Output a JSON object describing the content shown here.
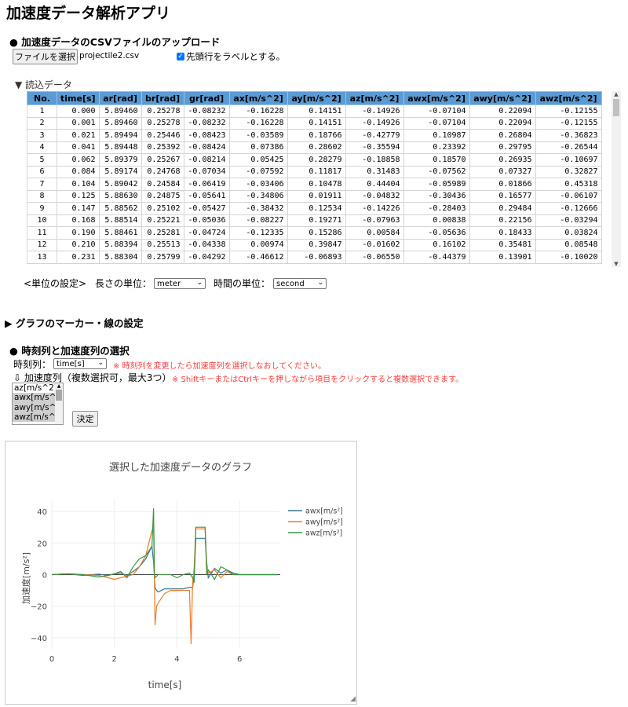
{
  "app": {
    "title": "加速度データ解析アプリ"
  },
  "upload": {
    "heading": "● 加速度データのCSVファイルのアップロード",
    "file_button": "ファイルを選択",
    "file_name": "projectile2.csv",
    "header_checkbox_label": "先頭行をラベルとする。",
    "header_checked": true
  },
  "readdata": {
    "summary": "▼ 読込データ",
    "columns": [
      "No.",
      "time[s]",
      "ar[rad]",
      "br[rad]",
      "gr[rad]",
      "ax[m/s^2]",
      "ay[m/s^2]",
      "az[m/s^2]",
      "awx[m/s^2]",
      "awy[m/s^2]",
      "awz[m/s^2]"
    ],
    "rows": [
      [
        "1",
        "0.000",
        "5.89460",
        "0.25278",
        "-0.08232",
        "-0.16228",
        "0.14151",
        "-0.14926",
        "-0.07104",
        "0.22094",
        "-0.12155"
      ],
      [
        "2",
        "0.001",
        "5.89460",
        "0.25278",
        "-0.08232",
        "-0.16228",
        "0.14151",
        "-0.14926",
        "-0.07104",
        "0.22094",
        "-0.12155"
      ],
      [
        "3",
        "0.021",
        "5.89494",
        "0.25446",
        "-0.08423",
        "-0.03589",
        "0.18766",
        "-0.42779",
        "0.10987",
        "0.26804",
        "-0.36823"
      ],
      [
        "4",
        "0.041",
        "5.89448",
        "0.25392",
        "-0.08424",
        "0.07386",
        "0.28602",
        "-0.35594",
        "0.23392",
        "0.29795",
        "-0.26544"
      ],
      [
        "5",
        "0.062",
        "5.89379",
        "0.25267",
        "-0.08214",
        "0.05425",
        "0.28279",
        "-0.18858",
        "0.18570",
        "0.26935",
        "-0.10697"
      ],
      [
        "6",
        "0.084",
        "5.89174",
        "0.24768",
        "-0.07034",
        "-0.07592",
        "0.11817",
        "0.31483",
        "-0.07562",
        "0.07327",
        "0.32827"
      ],
      [
        "7",
        "0.104",
        "5.89042",
        "0.24584",
        "-0.06419",
        "-0.03406",
        "0.10478",
        "0.44404",
        "-0.05989",
        "0.01866",
        "0.45318"
      ],
      [
        "8",
        "0.125",
        "5.88630",
        "0.24875",
        "-0.05641",
        "-0.34806",
        "0.01911",
        "-0.04832",
        "-0.30436",
        "0.16577",
        "-0.06107"
      ],
      [
        "9",
        "0.147",
        "5.88562",
        "0.25102",
        "-0.05427",
        "-0.38432",
        "0.12534",
        "-0.14226",
        "-0.28403",
        "0.29484",
        "-0.12666"
      ],
      [
        "10",
        "0.168",
        "5.88514",
        "0.25221",
        "-0.05036",
        "-0.08227",
        "0.19271",
        "-0.07963",
        "0.00838",
        "0.22156",
        "-0.03294"
      ],
      [
        "11",
        "0.190",
        "5.88461",
        "0.25281",
        "-0.04724",
        "-0.12335",
        "0.15286",
        "0.00584",
        "-0.05636",
        "0.18433",
        "0.03824"
      ],
      [
        "12",
        "0.210",
        "5.88394",
        "0.25513",
        "-0.04338",
        "0.00974",
        "0.39847",
        "-0.01602",
        "0.16102",
        "0.35481",
        "0.08548"
      ],
      [
        "13",
        "0.231",
        "5.88304",
        "0.25799",
        "-0.04292",
        "-0.46612",
        "-0.06893",
        "-0.06550",
        "-0.44379",
        "0.13901",
        "-0.10020"
      ]
    ]
  },
  "units": {
    "label": "<単位の設定>",
    "length_label": "長さの単位：",
    "length_value": "meter",
    "time_label": "時間の単位：",
    "time_value": "second"
  },
  "marker": {
    "summary": "▶ グラフのマーカー・線の設定"
  },
  "selection": {
    "heading": "● 時刻列と加速度列の選択",
    "time_label": "時刻列：",
    "time_value": "time[s]",
    "time_note": "※ 時刻列を変更したら加速度列を選択しなおしてください。",
    "accel_label": "⇩ 加速度列（複数選択可，最大3つ）",
    "accel_note": "※ ShiftキーまたはCtrlキーを押しながら項目をクリックすると複数選択できます。",
    "options": [
      "az[m/s^2]",
      "awx[m/s^2]",
      "awy[m/s^2]",
      "awz[m/s^2]"
    ],
    "selected": [
      false,
      true,
      true,
      true
    ],
    "decide_button": "決定"
  },
  "chart_data": {
    "type": "line",
    "title": "選択した加速度データのグラフ",
    "xlabel": "time[s]",
    "ylabel": "加速度[m/s²]",
    "xlim": [
      0,
      7.3
    ],
    "ylim": [
      -47,
      47
    ],
    "xticks": [
      "0",
      "2",
      "4",
      "6"
    ],
    "yticks": [
      "40",
      "20",
      "0",
      "−20",
      "−40"
    ],
    "legend_position": "top-right",
    "series": [
      {
        "name": "awx[m/s²]",
        "color": "#3a7590",
        "x": [
          0,
          0.5,
          1,
          1.5,
          1.8,
          2.0,
          2.2,
          2.4,
          2.6,
          2.8,
          3.0,
          3.1,
          3.2,
          3.25,
          3.3,
          3.35,
          3.4,
          3.6,
          3.8,
          4.0,
          4.2,
          4.4,
          4.5,
          4.55,
          4.6,
          4.8,
          4.9,
          4.95,
          5.0,
          5.2,
          5.4,
          5.6,
          5.8,
          6.0,
          6.5,
          7.0,
          7.2
        ],
        "y": [
          0,
          0.5,
          -0.5,
          0.3,
          -0.5,
          0.5,
          1.0,
          -0.5,
          2,
          5,
          10,
          14,
          18,
          8,
          -8,
          -10,
          -11,
          -9,
          -9,
          -9,
          -9,
          -8,
          -8,
          0,
          23,
          23,
          23,
          8,
          -2,
          4,
          1,
          3,
          1,
          0,
          0,
          0,
          0
        ]
      },
      {
        "name": "awy[m/s²]",
        "color": "#f07d28",
        "x": [
          0,
          0.5,
          1,
          1.5,
          1.8,
          2.0,
          2.2,
          2.4,
          2.6,
          2.8,
          3.0,
          3.1,
          3.2,
          3.25,
          3.28,
          3.3,
          3.35,
          3.4,
          3.5,
          3.6,
          3.8,
          4.0,
          4.2,
          4.4,
          4.45,
          4.5,
          4.55,
          4.6,
          4.8,
          4.9,
          4.95,
          5.0,
          5.2,
          5.4,
          5.6,
          5.8,
          6.0,
          6.5,
          7.0,
          7.2
        ],
        "y": [
          0,
          0.5,
          0,
          -0.5,
          -2,
          -3,
          -2,
          -1,
          0,
          5,
          12,
          20,
          28,
          30,
          -5,
          -32,
          -20,
          -18,
          -15,
          -12,
          -10,
          -10,
          -10,
          -10,
          -44,
          -5,
          5,
          29,
          29,
          29,
          5,
          1,
          3,
          -2,
          2,
          0,
          0,
          0,
          0,
          0
        ]
      },
      {
        "name": "awz[m/s²]",
        "color": "#3a9441",
        "x": [
          0,
          0.5,
          1,
          1.5,
          1.8,
          2.0,
          2.2,
          2.4,
          2.6,
          2.8,
          3.0,
          3.1,
          3.2,
          3.25,
          3.28,
          3.3,
          3.35,
          3.4,
          3.6,
          3.8,
          4.0,
          4.2,
          4.4,
          4.5,
          4.55,
          4.6,
          4.8,
          4.9,
          4.95,
          5.0,
          5.2,
          5.4,
          5.6,
          5.8,
          6.0,
          6.5,
          7.0,
          7.2
        ],
        "y": [
          0,
          0.5,
          0,
          -1.5,
          -0.5,
          0.5,
          2,
          -2,
          5,
          10,
          12,
          15,
          18,
          42,
          0,
          -2,
          -1,
          0,
          0,
          0,
          -2,
          0,
          1,
          -2,
          -5,
          30,
          30,
          30,
          0,
          3,
          -3,
          5,
          3,
          0,
          0,
          0,
          0,
          0
        ]
      }
    ]
  }
}
